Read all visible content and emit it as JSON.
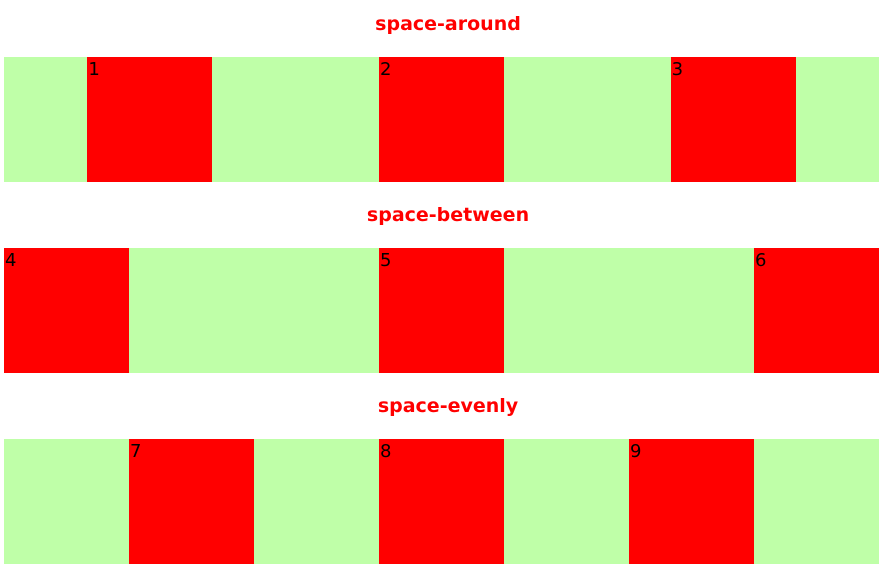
{
  "colors": {
    "title": "#ff0000",
    "container": "#bfffa8",
    "box": "#ff0000",
    "box_text": "#000000",
    "page_background": "#ffffff"
  },
  "sections": [
    {
      "title": "space-around",
      "items": [
        "1",
        "2",
        "3"
      ]
    },
    {
      "title": "space-between",
      "items": [
        "4",
        "5",
        "6"
      ]
    },
    {
      "title": "space-evenly",
      "items": [
        "7",
        "8",
        "9"
      ]
    }
  ]
}
